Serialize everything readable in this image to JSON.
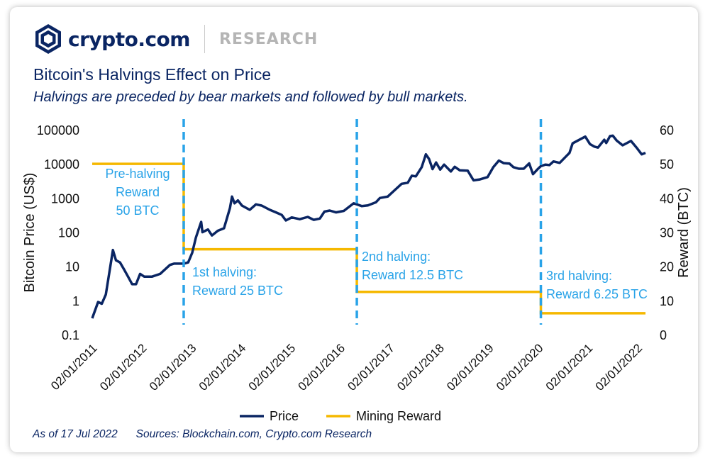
{
  "brand": {
    "name": "crypto.com",
    "section": "RESEARCH"
  },
  "header": {
    "title": "Bitcoin's Halvings Effect on Price",
    "subtitle": "Halvings are preceded by bear markets and followed by bull markets."
  },
  "footer": {
    "as_of": "As of 17 Jul 2022",
    "sources": "Sources: Blockchain.com, Crypto.com Research"
  },
  "colors": {
    "price": "#0a2563",
    "reward": "#f5b800",
    "halving_line": "#29a3e8",
    "annotation": "#29a3e8",
    "brand": "#0a2563"
  },
  "chart_data": {
    "type": "line",
    "title": "Bitcoin's Halvings Effect on Price",
    "subtitle": "Halvings are preceded by bear markets and followed by bull markets.",
    "xlabel": "",
    "ylabel": "Bitcoin Price (US$)",
    "y2label": "Reward (BTC)",
    "y_scale": "log",
    "ylim": [
      0.1,
      100000
    ],
    "y_ticks": [
      "0.1",
      "1",
      "10",
      "100",
      "1000",
      "10000",
      "100000"
    ],
    "y2lim": [
      0,
      60
    ],
    "y2_ticks": [
      "0",
      "10",
      "20",
      "30",
      "40",
      "50",
      "60"
    ],
    "x_ticks": [
      "02/01/2011",
      "02/01/2012",
      "02/01/2013",
      "02/01/2014",
      "02/01/2015",
      "02/01/2016",
      "02/01/2017",
      "02/01/2018",
      "02/01/2019",
      "02/01/2020",
      "02/01/2021",
      "02/01/2022"
    ],
    "xlim": [
      "2011-01-01",
      "2022-07-17"
    ],
    "grid": false,
    "legend": "bottom",
    "series": [
      {
        "name": "Price",
        "axis": "left",
        "points": [
          [
            "2011-01-01",
            0.3
          ],
          [
            "2011-02-15",
            0.9
          ],
          [
            "2011-03-15",
            0.8
          ],
          [
            "2011-04-15",
            1.5
          ],
          [
            "2011-05-15",
            8
          ],
          [
            "2011-06-08",
            30
          ],
          [
            "2011-07-01",
            15
          ],
          [
            "2011-08-01",
            13
          ],
          [
            "2011-09-01",
            8
          ],
          [
            "2011-10-01",
            5
          ],
          [
            "2011-11-01",
            3
          ],
          [
            "2011-12-01",
            3
          ],
          [
            "2012-01-01",
            6
          ],
          [
            "2012-02-01",
            5
          ],
          [
            "2012-03-01",
            5
          ],
          [
            "2012-04-01",
            5
          ],
          [
            "2012-06-01",
            6
          ],
          [
            "2012-08-15",
            11
          ],
          [
            "2012-09-15",
            12
          ],
          [
            "2012-10-15",
            12
          ],
          [
            "2012-11-28",
            12
          ],
          [
            "2013-01-01",
            13
          ],
          [
            "2013-02-01",
            25
          ],
          [
            "2013-03-01",
            70
          ],
          [
            "2013-04-10",
            200
          ],
          [
            "2013-04-20",
            100
          ],
          [
            "2013-06-01",
            120
          ],
          [
            "2013-07-01",
            80
          ],
          [
            "2013-08-15",
            110
          ],
          [
            "2013-10-01",
            130
          ],
          [
            "2013-11-15",
            500
          ],
          [
            "2013-12-01",
            1100
          ],
          [
            "2013-12-20",
            700
          ],
          [
            "2014-01-15",
            850
          ],
          [
            "2014-02-15",
            600
          ],
          [
            "2014-04-15",
            450
          ],
          [
            "2014-06-01",
            650
          ],
          [
            "2014-07-15",
            600
          ],
          [
            "2014-09-15",
            450
          ],
          [
            "2014-11-01",
            380
          ],
          [
            "2014-12-15",
            320
          ],
          [
            "2015-01-15",
            220
          ],
          [
            "2015-03-01",
            270
          ],
          [
            "2015-05-01",
            240
          ],
          [
            "2015-07-01",
            280
          ],
          [
            "2015-08-15",
            230
          ],
          [
            "2015-10-01",
            250
          ],
          [
            "2015-11-05",
            400
          ],
          [
            "2015-12-15",
            430
          ],
          [
            "2016-02-01",
            380
          ],
          [
            "2016-04-01",
            420
          ],
          [
            "2016-06-15",
            700
          ],
          [
            "2016-07-09",
            650
          ],
          [
            "2016-08-15",
            580
          ],
          [
            "2016-10-01",
            610
          ],
          [
            "2016-12-01",
            750
          ],
          [
            "2017-01-01",
            1000
          ],
          [
            "2017-03-01",
            1100
          ],
          [
            "2017-05-01",
            1800
          ],
          [
            "2017-06-15",
            2600
          ],
          [
            "2017-08-01",
            2800
          ],
          [
            "2017-09-01",
            4500
          ],
          [
            "2017-10-01",
            4300
          ],
          [
            "2017-11-15",
            8000
          ],
          [
            "2017-12-17",
            19000
          ],
          [
            "2018-01-10",
            14000
          ],
          [
            "2018-02-06",
            7000
          ],
          [
            "2018-03-05",
            11000
          ],
          [
            "2018-04-05",
            6800
          ],
          [
            "2018-05-05",
            9500
          ],
          [
            "2018-06-25",
            6000
          ],
          [
            "2018-07-25",
            8200
          ],
          [
            "2018-09-01",
            6500
          ],
          [
            "2018-11-01",
            6300
          ],
          [
            "2018-12-15",
            3300
          ],
          [
            "2019-02-01",
            3500
          ],
          [
            "2019-04-01",
            4100
          ],
          [
            "2019-05-15",
            8000
          ],
          [
            "2019-06-26",
            12500
          ],
          [
            "2019-08-01",
            10500
          ],
          [
            "2019-09-15",
            10200
          ],
          [
            "2019-10-15",
            8000
          ],
          [
            "2019-11-25",
            7200
          ],
          [
            "2020-01-01",
            7200
          ],
          [
            "2020-02-12",
            10300
          ],
          [
            "2020-03-12",
            5000
          ],
          [
            "2020-04-15",
            6900
          ],
          [
            "2020-05-11",
            8600
          ],
          [
            "2020-06-15",
            9500
          ],
          [
            "2020-07-15",
            9200
          ],
          [
            "2020-08-15",
            11800
          ],
          [
            "2020-10-01",
            10700
          ],
          [
            "2020-11-15",
            16000
          ],
          [
            "2020-12-15",
            21000
          ],
          [
            "2021-01-08",
            40000
          ],
          [
            "2021-02-15",
            48000
          ],
          [
            "2021-04-14",
            63000
          ],
          [
            "2021-05-20",
            38000
          ],
          [
            "2021-06-22",
            32000
          ],
          [
            "2021-07-20",
            30000
          ],
          [
            "2021-09-06",
            51000
          ],
          [
            "2021-09-21",
            41000
          ],
          [
            "2021-10-20",
            65000
          ],
          [
            "2021-11-10",
            67000
          ],
          [
            "2021-12-10",
            48000
          ],
          [
            "2022-01-24",
            35000
          ],
          [
            "2022-03-28",
            47000
          ],
          [
            "2022-05-10",
            30000
          ],
          [
            "2022-06-18",
            19000
          ],
          [
            "2022-07-17",
            21000
          ]
        ]
      },
      {
        "name": "Mining Reward",
        "axis": "right",
        "steps": [
          [
            "2011-01-01",
            50
          ],
          [
            "2012-11-28",
            25
          ],
          [
            "2016-07-09",
            12.5
          ],
          [
            "2020-05-11",
            6.25
          ],
          [
            "2022-07-17",
            6.25
          ]
        ]
      }
    ],
    "halvings": [
      "2012-11-28",
      "2016-07-09",
      "2020-05-11"
    ],
    "annotations": [
      {
        "date": "2011-05-15",
        "lines": [
          "Pre-halving",
          "Reward",
          "50 BTC"
        ]
      },
      {
        "date": "2012-11-28",
        "lines": [
          "1st halving:",
          "Reward 25 BTC"
        ]
      },
      {
        "date": "2016-07-09",
        "lines": [
          "2nd halving:",
          "Reward 12.5 BTC"
        ]
      },
      {
        "date": "2020-05-11",
        "lines": [
          "3rd halving:",
          "Reward 6.25 BTC"
        ]
      }
    ]
  }
}
